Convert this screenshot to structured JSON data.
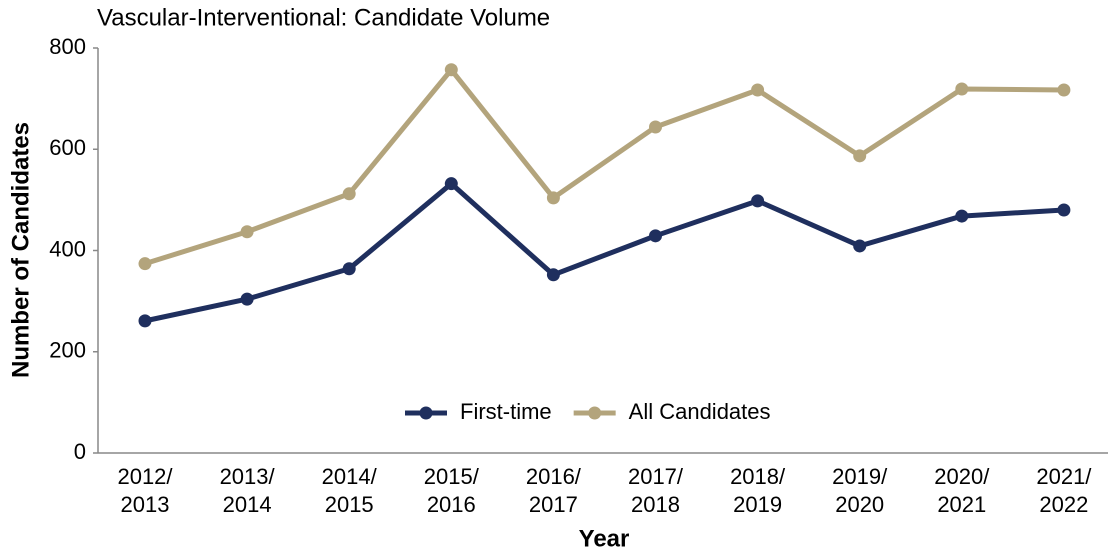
{
  "chart_data": {
    "type": "line",
    "title": "Vascular-Interventional: Candidate Volume",
    "xlabel": "Year",
    "ylabel": "Number of Candidates",
    "categories": [
      "2012/\n2013",
      "2013/\n2014",
      "2014/\n2015",
      "2015/\n2016",
      "2016/\n2017",
      "2017/\n2018",
      "2018/\n2019",
      "2019/\n2020",
      "2020/\n2021",
      "2021/\n2022"
    ],
    "series": [
      {
        "name": "First-time",
        "color": "#1f2f5e",
        "values": [
          261,
          304,
          364,
          532,
          352,
          429,
          498,
          409,
          468,
          480
        ]
      },
      {
        "name": "All Candidates",
        "color": "#b3a47c",
        "values": [
          374,
          437,
          512,
          757,
          504,
          644,
          717,
          587,
          719,
          717
        ]
      }
    ],
    "ylim": [
      0,
      800
    ],
    "yticks": [
      0,
      200,
      400,
      600,
      800
    ],
    "grid": false,
    "legend": "bottom"
  }
}
